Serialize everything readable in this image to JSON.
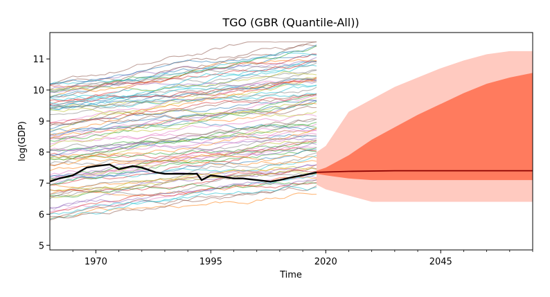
{
  "chart_data": {
    "type": "line",
    "title": "TGO (GBR (Quantile-All))",
    "xlabel": "Time",
    "ylabel": "log(GDP)",
    "xlim": [
      1960,
      2065
    ],
    "ylim": [
      4.85,
      11.85
    ],
    "x_ticks": [
      1970,
      1995,
      2020,
      2045
    ],
    "y_ticks": [
      5,
      6,
      7,
      8,
      9,
      10,
      11
    ],
    "grid": false,
    "legend": "none",
    "history_years": [
      1960,
      2018
    ],
    "colors": {
      "highlight": "#000000",
      "median": "#8b0000",
      "band_inner": "#ff7b5e",
      "band_outer": "#ffcac0"
    },
    "series": [
      {
        "x": [
          1960,
          1962,
          1965,
          1968,
          1970,
          1973,
          1975,
          1978,
          1980,
          1983,
          1985,
          1988,
          1990,
          1992,
          1993,
          1995,
          1998,
          2000,
          2002,
          2005,
          2008,
          2010,
          2013,
          2015,
          2018
        ],
        "y": [
          7.05,
          7.15,
          7.25,
          7.5,
          7.55,
          7.6,
          7.45,
          7.55,
          7.5,
          7.35,
          7.3,
          7.3,
          7.3,
          7.3,
          7.1,
          7.25,
          7.2,
          7.15,
          7.15,
          7.1,
          7.05,
          7.1,
          7.2,
          7.25,
          7.35
        ]
      },
      {
        "name": "median",
        "x": [
          2018,
          2025,
          2035,
          2045,
          2055,
          2065
        ],
        "y": [
          7.35,
          7.38,
          7.4,
          7.4,
          7.4,
          7.4
        ]
      }
    ],
    "background_series": {
      "count": 90,
      "range_start": [
        5.8,
        10.3
      ],
      "range_end": [
        6.5,
        11.35
      ]
    },
    "bands": [
      {
        "x": [
          2018,
          2020,
          2025,
          2030,
          2035,
          2040,
          2045,
          2050,
          2055,
          2060,
          2065
        ],
        "low": [
          6.95,
          6.8,
          6.6,
          6.4,
          6.4,
          6.4,
          6.4,
          6.4,
          6.4,
          6.4,
          6.4
        ],
        "high": [
          8.0,
          8.2,
          9.3,
          9.7,
          10.1,
          10.4,
          10.7,
          10.95,
          11.15,
          11.25,
          11.25
        ]
      },
      {
        "x": [
          2018,
          2020,
          2025,
          2030,
          2035,
          2040,
          2045,
          2050,
          2055,
          2060,
          2065
        ],
        "low": [
          7.3,
          7.25,
          7.15,
          7.1,
          7.1,
          7.1,
          7.1,
          7.1,
          7.1,
          7.1,
          7.1
        ],
        "high": [
          7.4,
          7.5,
          7.9,
          8.4,
          8.8,
          9.2,
          9.55,
          9.9,
          10.2,
          10.4,
          10.55
        ]
      }
    ]
  }
}
